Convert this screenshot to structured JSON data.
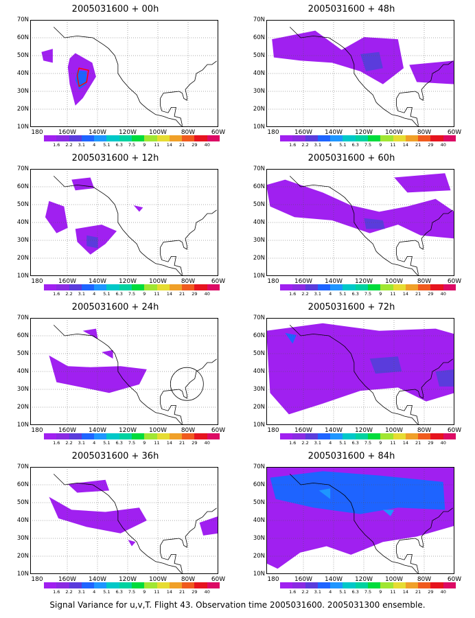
{
  "footer": "Signal Variance for u,v,T. Flight 43. Observation time 2005031600. 2005031300 ensemble.",
  "panels": [
    {
      "title": "2005031600 + 00h"
    },
    {
      "title": "2005031600 + 48h"
    },
    {
      "title": "2005031600 + 12h"
    },
    {
      "title": "2005031600 + 60h"
    },
    {
      "title": "2005031600 + 24h"
    },
    {
      "title": "2005031600 + 72h"
    },
    {
      "title": "2005031600 + 36h"
    },
    {
      "title": "2005031600 + 84h"
    }
  ],
  "lat_labels": [
    "70N",
    "60N",
    "50N",
    "40N",
    "30N",
    "20N",
    "10N"
  ],
  "lon_labels": [
    "180",
    "160W",
    "140W",
    "120W",
    "100W",
    "80W",
    "60W"
  ],
  "colorbar": {
    "labels": [
      "1.6",
      "2.2",
      "3.1",
      "4",
      "5.1",
      "6.3",
      "7.5",
      "9",
      "11",
      "14",
      "21",
      "29",
      "40"
    ],
    "colors": [
      "#a020f0",
      "#8a2be2",
      "#5a3cdc",
      "#1e64ff",
      "#1e96ff",
      "#00c8c8",
      "#00d2a0",
      "#00dc3c",
      "#a0e632",
      "#e6dc32",
      "#f0a028",
      "#f05a1e",
      "#e6141e",
      "#dc0a64"
    ]
  },
  "colors": {
    "land_line": "#000000",
    "grid_line": "#555555",
    "outline": "#ff0000"
  }
}
